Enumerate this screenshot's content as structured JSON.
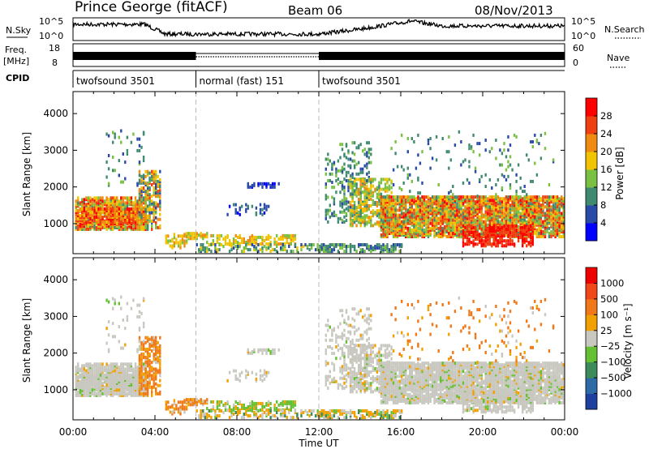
{
  "header": {
    "station": "Prince George (fitACF)",
    "beam": "Beam 06",
    "date": "08/Nov/2013"
  },
  "top_panels": {
    "nsky_label": "N.Sky",
    "nsky_ticks": [
      "10^5",
      "10^0"
    ],
    "nsearch_label": "N.Search",
    "nsearch_ticks": [
      "10^5",
      "10^0"
    ],
    "freq_label": "Freq.",
    "freq_unit": "[MHz]",
    "freq_ticks": [
      "18",
      "8"
    ],
    "nave_label": "Nave",
    "nave_ticks": [
      "60",
      "0"
    ],
    "cpid_label": "CPID",
    "cpid_segments": [
      {
        "label": "twofsound 3501",
        "start_h": 0,
        "end_h": 6
      },
      {
        "label": "normal (fast) 151",
        "start_h": 6,
        "end_h": 12
      },
      {
        "label": "twofsound 3501",
        "start_h": 12,
        "end_h": 24
      }
    ]
  },
  "chart_data": [
    {
      "type": "heatmap",
      "xlabel": "Time UT",
      "ylabel": "Slant Range [km]",
      "x_ticks": [
        "00:00",
        "04:00",
        "08:00",
        "12:00",
        "16:00",
        "20:00",
        "00:00"
      ],
      "xlim": [
        0,
        24
      ],
      "y_ticks": [
        1000,
        2000,
        3000,
        4000
      ],
      "ylim": [
        180,
        4600
      ],
      "colorbar": {
        "label": "Power [dB]",
        "ticks": [
          "28",
          "24",
          "20",
          "16",
          "12",
          "8",
          "4"
        ],
        "colors": [
          "#0000ff",
          "#2a4aa8",
          "#3f8a70",
          "#7ac043",
          "#f0c400",
          "#f08a10",
          "#ee4010",
          "#ff0000"
        ]
      }
    },
    {
      "type": "heatmap",
      "xlabel": "Time UT",
      "ylabel": "Slant Range [km]",
      "x_ticks": [
        "00:00",
        "04:00",
        "08:00",
        "12:00",
        "16:00",
        "20:00",
        "00:00"
      ],
      "xlim": [
        0,
        24
      ],
      "y_ticks": [
        1000,
        2000,
        3000,
        4000
      ],
      "ylim": [
        180,
        4600
      ],
      "colorbar": {
        "label": "Velocity [m s⁻¹]",
        "ticks": [
          "1000",
          "500",
          "100",
          "25",
          "−25",
          "−100",
          "−500",
          "−1000"
        ],
        "colors": [
          "#2040a0",
          "#2e6aa6",
          "#3d8a5a",
          "#66c033",
          "#c8c8c0",
          "#f0a000",
          "#f07818",
          "#f04818",
          "#ee0000"
        ]
      }
    }
  ]
}
